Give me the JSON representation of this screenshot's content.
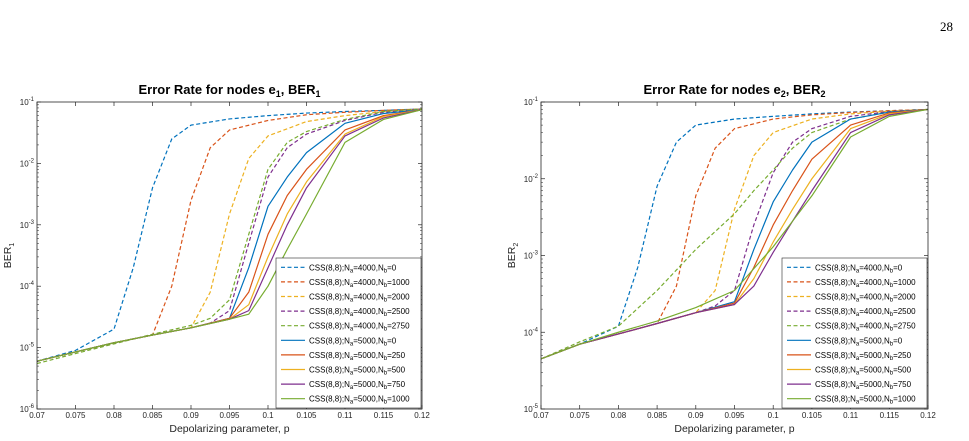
{
  "page_number": "28",
  "chart_data": [
    {
      "type": "line",
      "title_main": "Error Rate for nodes e",
      "title_sub1": "1",
      "title_mid": ", BER",
      "title_sub2": "1",
      "xlabel": "Depolarizing parameter, p",
      "ylabel_main": "BER",
      "ylabel_sub": "1",
      "y_scale": "log",
      "xlim": [
        0.07,
        0.12
      ],
      "ylim_exp": [
        -6,
        -1
      ],
      "x_ticks": [
        "0.07",
        "0.075",
        "0.08",
        "0.085",
        "0.09",
        "0.095",
        "0.1",
        "0.105",
        "0.11",
        "0.115",
        "0.12"
      ],
      "y_ticks": [
        {
          "exp": -6
        },
        {
          "exp": -5
        },
        {
          "exp": -4
        },
        {
          "exp": -3
        },
        {
          "exp": -2
        },
        {
          "exp": -1
        }
      ],
      "legend_position": "bottom-right",
      "series": [
        {
          "label_pre": "CSS(8,8);N",
          "sub_a": "a",
          "label_mid": "=4000,N",
          "sub_b": "b",
          "label_post": "=0",
          "color": "#0072BD",
          "dash": true,
          "x": [
            0.07,
            0.075,
            0.08,
            0.0825,
            0.085,
            0.0875,
            0.09,
            0.095,
            0.1,
            0.105,
            0.11,
            0.115,
            0.12
          ],
          "y": [
            6e-06,
            9e-06,
            2e-05,
            0.0002,
            0.004,
            0.025,
            0.042,
            0.053,
            0.06,
            0.066,
            0.07,
            0.073,
            0.077
          ]
        },
        {
          "label_pre": "CSS(8,8);N",
          "sub_a": "a",
          "label_mid": "=4000,N",
          "sub_b": "b",
          "label_post": "=1000",
          "color": "#D95319",
          "dash": true,
          "x": [
            0.07,
            0.075,
            0.08,
            0.085,
            0.0875,
            0.09,
            0.0925,
            0.095,
            0.1,
            0.105,
            0.11,
            0.115,
            0.12
          ],
          "y": [
            6e-06,
            8.5e-06,
            1.2e-05,
            1.6e-05,
            0.0001,
            0.0025,
            0.018,
            0.035,
            0.05,
            0.062,
            0.068,
            0.073,
            0.077
          ]
        },
        {
          "label_pre": "CSS(8,8);N",
          "sub_a": "a",
          "label_mid": "=4000,N",
          "sub_b": "b",
          "label_post": "=2000",
          "color": "#EDB120",
          "dash": true,
          "x": [
            0.07,
            0.075,
            0.08,
            0.085,
            0.09,
            0.0925,
            0.095,
            0.0975,
            0.1,
            0.105,
            0.11,
            0.115,
            0.12
          ],
          "y": [
            6e-06,
            8.5e-06,
            1.2e-05,
            1.6e-05,
            2.1e-05,
            8e-05,
            0.0015,
            0.012,
            0.028,
            0.048,
            0.06,
            0.07,
            0.077
          ]
        },
        {
          "label_pre": "CSS(8,8);N",
          "sub_a": "a",
          "label_mid": "=4000,N",
          "sub_b": "b",
          "label_post": "=2500",
          "color": "#7E2F8E",
          "dash": true,
          "x": [
            0.07,
            0.075,
            0.08,
            0.085,
            0.09,
            0.0925,
            0.095,
            0.0975,
            0.1,
            0.1025,
            0.105,
            0.11,
            0.115,
            0.12
          ],
          "y": [
            6e-06,
            8.5e-06,
            1.2e-05,
            1.6e-05,
            2.1e-05,
            2.5e-05,
            4e-05,
            0.0005,
            0.006,
            0.018,
            0.03,
            0.05,
            0.068,
            0.077
          ]
        },
        {
          "label_pre": "CSS(8,8);N",
          "sub_a": "a",
          "label_mid": "=4000,N",
          "sub_b": "b",
          "label_post": "=2750",
          "color": "#77AC30",
          "dash": true,
          "x": [
            0.07,
            0.075,
            0.08,
            0.085,
            0.09,
            0.0925,
            0.095,
            0.0975,
            0.1,
            0.1025,
            0.105,
            0.11,
            0.115,
            0.12
          ],
          "y": [
            5.5e-06,
            8e-06,
            1.15e-05,
            1.65e-05,
            2.3e-05,
            3e-05,
            6e-05,
            0.0007,
            0.008,
            0.022,
            0.033,
            0.052,
            0.07,
            0.077
          ]
        },
        {
          "label_pre": "CSS(8,8);N",
          "sub_a": "a",
          "label_mid": "=5000,N",
          "sub_b": "b",
          "label_post": "=0",
          "color": "#0072BD",
          "dash": false,
          "x": [
            0.07,
            0.075,
            0.08,
            0.085,
            0.09,
            0.095,
            0.0975,
            0.1,
            0.1025,
            0.105,
            0.11,
            0.115,
            0.12
          ],
          "y": [
            6e-06,
            8.5e-06,
            1.2e-05,
            1.6e-05,
            2.1e-05,
            3e-05,
            0.0002,
            0.002,
            0.006,
            0.015,
            0.045,
            0.065,
            0.075
          ]
        },
        {
          "label_pre": "CSS(8,8);N",
          "sub_a": "a",
          "label_mid": "=5000,N",
          "sub_b": "b",
          "label_post": "=250",
          "color": "#D95319",
          "dash": false,
          "x": [
            0.07,
            0.075,
            0.08,
            0.085,
            0.09,
            0.095,
            0.0975,
            0.1,
            0.1025,
            0.105,
            0.11,
            0.115,
            0.12
          ],
          "y": [
            6e-06,
            8.5e-06,
            1.2e-05,
            1.6e-05,
            2.1e-05,
            3e-05,
            8e-05,
            0.0007,
            0.003,
            0.008,
            0.035,
            0.06,
            0.075
          ]
        },
        {
          "label_pre": "CSS(8,8);N",
          "sub_a": "a",
          "label_mid": "=5000,N",
          "sub_b": "b",
          "label_post": "=500",
          "color": "#EDB120",
          "dash": false,
          "x": [
            0.07,
            0.075,
            0.08,
            0.085,
            0.09,
            0.095,
            0.0975,
            0.1,
            0.1025,
            0.105,
            0.11,
            0.115,
            0.12
          ],
          "y": [
            6e-06,
            8.5e-06,
            1.2e-05,
            1.6e-05,
            2.1e-05,
            2.9e-05,
            5e-05,
            0.0003,
            0.0015,
            0.005,
            0.03,
            0.058,
            0.075
          ]
        },
        {
          "label_pre": "CSS(8,8);N",
          "sub_a": "a",
          "label_mid": "=5000,N",
          "sub_b": "b",
          "label_post": "=750",
          "color": "#7E2F8E",
          "dash": false,
          "x": [
            0.07,
            0.075,
            0.08,
            0.085,
            0.09,
            0.095,
            0.0975,
            0.1,
            0.1025,
            0.105,
            0.11,
            0.115,
            0.12
          ],
          "y": [
            6e-06,
            8.5e-06,
            1.2e-05,
            1.6e-05,
            2.1e-05,
            2.9e-05,
            4e-05,
            0.0002,
            0.001,
            0.004,
            0.028,
            0.055,
            0.075
          ]
        },
        {
          "label_pre": "CSS(8,8);N",
          "sub_a": "a",
          "label_mid": "=5000,N",
          "sub_b": "b",
          "label_post": "=1000",
          "color": "#77AC30",
          "dash": false,
          "x": [
            0.07,
            0.075,
            0.08,
            0.085,
            0.09,
            0.095,
            0.0975,
            0.1,
            0.1025,
            0.105,
            0.11,
            0.115,
            0.12
          ],
          "y": [
            6e-06,
            8.5e-06,
            1.2e-05,
            1.6e-05,
            2.1e-05,
            2.9e-05,
            3.5e-05,
            0.0001,
            0.0004,
            0.0015,
            0.022,
            0.052,
            0.075
          ]
        }
      ]
    },
    {
      "type": "line",
      "title_main": "Error Rate for nodes e",
      "title_sub1": "2",
      "title_mid": ", BER",
      "title_sub2": "2",
      "xlabel": "Depolarizing parameter, p",
      "ylabel_main": "BER",
      "ylabel_sub": "2",
      "y_scale": "log",
      "xlim": [
        0.07,
        0.12
      ],
      "ylim_exp": [
        -5,
        -1
      ],
      "x_ticks": [
        "0.07",
        "0.075",
        "0.08",
        "0.085",
        "0.09",
        "0.095",
        "0.1",
        "0.105",
        "0.11",
        "0.115",
        "0.12"
      ],
      "y_ticks": [
        {
          "exp": -5
        },
        {
          "exp": -4
        },
        {
          "exp": -3
        },
        {
          "exp": -2
        },
        {
          "exp": -1
        }
      ],
      "legend_position": "bottom-right",
      "series": [
        {
          "label_pre": "CSS(8,8);N",
          "sub_a": "a",
          "label_mid": "=4000,N",
          "sub_b": "b",
          "label_post": "=0",
          "color": "#0072BD",
          "dash": true,
          "x": [
            0.07,
            0.075,
            0.08,
            0.0825,
            0.085,
            0.0875,
            0.09,
            0.095,
            0.1,
            0.105,
            0.11,
            0.115,
            0.12
          ],
          "y": [
            4.5e-05,
            7e-05,
            0.00012,
            0.0007,
            0.008,
            0.03,
            0.05,
            0.06,
            0.065,
            0.07,
            0.074,
            0.077,
            0.08
          ]
        },
        {
          "label_pre": "CSS(8,8);N",
          "sub_a": "a",
          "label_mid": "=4000,N",
          "sub_b": "b",
          "label_post": "=1000",
          "color": "#D95319",
          "dash": true,
          "x": [
            0.07,
            0.075,
            0.08,
            0.085,
            0.0875,
            0.09,
            0.0925,
            0.095,
            0.1,
            0.105,
            0.11,
            0.115,
            0.12
          ],
          "y": [
            4.5e-05,
            7e-05,
            9.5e-05,
            0.00013,
            0.0004,
            0.006,
            0.025,
            0.045,
            0.06,
            0.068,
            0.073,
            0.077,
            0.08
          ]
        },
        {
          "label_pre": "CSS(8,8);N",
          "sub_a": "a",
          "label_mid": "=4000,N",
          "sub_b": "b",
          "label_post": "=2000",
          "color": "#EDB120",
          "dash": true,
          "x": [
            0.07,
            0.075,
            0.08,
            0.085,
            0.09,
            0.0925,
            0.095,
            0.0975,
            0.1,
            0.105,
            0.11,
            0.115,
            0.12
          ],
          "y": [
            4.5e-05,
            7e-05,
            9.5e-05,
            0.00013,
            0.00018,
            0.00035,
            0.004,
            0.02,
            0.04,
            0.06,
            0.07,
            0.076,
            0.08
          ]
        },
        {
          "label_pre": "CSS(8,8);N",
          "sub_a": "a",
          "label_mid": "=4000,N",
          "sub_b": "b",
          "label_post": "=2500",
          "color": "#7E2F8E",
          "dash": true,
          "x": [
            0.07,
            0.075,
            0.08,
            0.085,
            0.09,
            0.0925,
            0.095,
            0.0975,
            0.1,
            0.1025,
            0.105,
            0.11,
            0.115,
            0.12
          ],
          "y": [
            4.5e-05,
            7e-05,
            9.5e-05,
            0.00013,
            0.00018,
            0.00022,
            0.00035,
            0.0025,
            0.012,
            0.03,
            0.045,
            0.065,
            0.075,
            0.08
          ]
        },
        {
          "label_pre": "CSS(8,8);N",
          "sub_a": "a",
          "label_mid": "=4000,N",
          "sub_b": "b",
          "label_post": "=2750",
          "color": "#77AC30",
          "dash": true,
          "x": [
            0.07,
            0.075,
            0.08,
            0.085,
            0.09,
            0.095,
            0.0975,
            0.1,
            0.1025,
            0.105,
            0.11,
            0.115,
            0.12
          ],
          "y": [
            4.5e-05,
            7.5e-05,
            0.00012,
            0.00035,
            0.0012,
            0.0035,
            0.007,
            0.013,
            0.025,
            0.04,
            0.06,
            0.074,
            0.08
          ]
        },
        {
          "label_pre": "CSS(8,8);N",
          "sub_a": "a",
          "label_mid": "=5000,N",
          "sub_b": "b",
          "label_post": "=0",
          "color": "#0072BD",
          "dash": false,
          "x": [
            0.07,
            0.075,
            0.08,
            0.085,
            0.09,
            0.095,
            0.0975,
            0.1,
            0.1025,
            0.105,
            0.11,
            0.115,
            0.12
          ],
          "y": [
            4.5e-05,
            7e-05,
            9.5e-05,
            0.00013,
            0.00018,
            0.00025,
            0.0012,
            0.005,
            0.013,
            0.03,
            0.06,
            0.074,
            0.08
          ]
        },
        {
          "label_pre": "CSS(8,8);N",
          "sub_a": "a",
          "label_mid": "=5000,N",
          "sub_b": "b",
          "label_post": "=250",
          "color": "#D95319",
          "dash": false,
          "x": [
            0.07,
            0.075,
            0.08,
            0.085,
            0.09,
            0.095,
            0.0975,
            0.1,
            0.1025,
            0.105,
            0.11,
            0.115,
            0.12
          ],
          "y": [
            4.5e-05,
            7e-05,
            9.5e-05,
            0.00013,
            0.00018,
            0.00024,
            0.0007,
            0.0025,
            0.007,
            0.018,
            0.05,
            0.072,
            0.08
          ]
        },
        {
          "label_pre": "CSS(8,8);N",
          "sub_a": "a",
          "label_mid": "=5000,N",
          "sub_b": "b",
          "label_post": "=500",
          "color": "#EDB120",
          "dash": false,
          "x": [
            0.07,
            0.075,
            0.08,
            0.085,
            0.09,
            0.095,
            0.0975,
            0.1,
            0.1025,
            0.105,
            0.11,
            0.115,
            0.12
          ],
          "y": [
            4.5e-05,
            7e-05,
            9.5e-05,
            0.00013,
            0.00018,
            0.00023,
            0.0005,
            0.0015,
            0.004,
            0.01,
            0.045,
            0.07,
            0.08
          ]
        },
        {
          "label_pre": "CSS(8,8);N",
          "sub_a": "a",
          "label_mid": "=5000,N",
          "sub_b": "b",
          "label_post": "=750",
          "color": "#7E2F8E",
          "dash": false,
          "x": [
            0.07,
            0.075,
            0.08,
            0.085,
            0.09,
            0.095,
            0.0975,
            0.1,
            0.1025,
            0.105,
            0.11,
            0.115,
            0.12
          ],
          "y": [
            4.5e-05,
            7e-05,
            9.5e-05,
            0.00013,
            0.00018,
            0.00023,
            0.0004,
            0.0011,
            0.0028,
            0.007,
            0.04,
            0.068,
            0.08
          ]
        },
        {
          "label_pre": "CSS(8,8);N",
          "sub_a": "a",
          "label_mid": "=5000,N",
          "sub_b": "b",
          "label_post": "=1000",
          "color": "#77AC30",
          "dash": false,
          "x": [
            0.07,
            0.075,
            0.08,
            0.085,
            0.09,
            0.095,
            0.1,
            0.1025,
            0.105,
            0.11,
            0.115,
            0.12
          ],
          "y": [
            4.5e-05,
            7e-05,
            0.0001,
            0.00014,
            0.00021,
            0.00035,
            0.0013,
            0.0028,
            0.006,
            0.035,
            0.065,
            0.08
          ]
        }
      ]
    }
  ]
}
